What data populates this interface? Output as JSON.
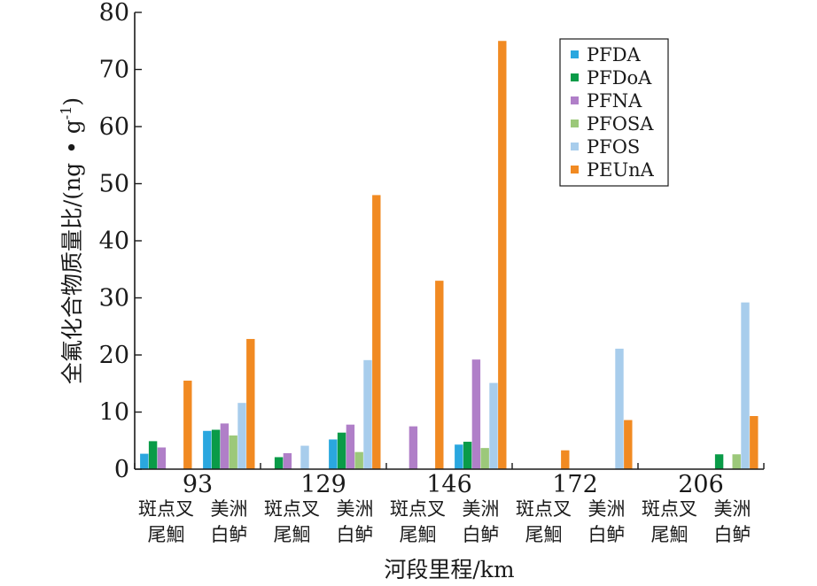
{
  "chart_data": {
    "type": "bar",
    "title": "",
    "xlabel": "河段里程/km",
    "ylabel": "全氟化合物质量比/(ng·g⁻¹)",
    "ylabel_main": "全氟化合物质量比/(ng",
    "ylabel_unit": "g",
    "ylabel_sup": "-1",
    "ylabel_end": ")",
    "ylim": [
      0,
      80
    ],
    "yticks": [
      0,
      10,
      20,
      30,
      40,
      50,
      60,
      70,
      80
    ],
    "legend_position": "top-right",
    "grid": false,
    "distances": [
      "93",
      "129",
      "146",
      "172",
      "206"
    ],
    "species": [
      [
        "斑点叉",
        "尾鮰"
      ],
      [
        "美洲",
        "白鲈"
      ]
    ],
    "categories": [
      "93 斑点叉尾鮰",
      "93 美洲白鲈",
      "129 斑点叉尾鮰",
      "129 美洲白鲈",
      "146 斑点叉尾鮰",
      "146 美洲白鲈",
      "172 斑点叉尾鮰",
      "172 美洲白鲈",
      "206 斑点叉尾鮰",
      "206 美洲白鲈"
    ],
    "series": [
      {
        "name": "PFDA",
        "color": "#2aa7df",
        "values": [
          2.7,
          6.7,
          0,
          5.2,
          0,
          4.3,
          0,
          0,
          0,
          0
        ]
      },
      {
        "name": "PFDoA",
        "color": "#0a9b48",
        "values": [
          4.9,
          6.9,
          2.1,
          6.4,
          0,
          4.8,
          0,
          0,
          0,
          2.6
        ]
      },
      {
        "name": "PFNA",
        "color": "#b07fc8",
        "values": [
          3.8,
          8.0,
          2.8,
          7.8,
          7.5,
          19.2,
          0,
          0,
          0,
          0
        ]
      },
      {
        "name": "PFOSA",
        "color": "#9cc87a",
        "values": [
          0,
          5.9,
          0,
          3.0,
          0,
          3.7,
          0,
          0,
          0,
          2.6
        ]
      },
      {
        "name": "PFOS",
        "color": "#a8cdec",
        "values": [
          0,
          11.6,
          4.1,
          19.1,
          0,
          15.1,
          0,
          21.1,
          0,
          29.2
        ]
      },
      {
        "name": "PEUnA",
        "color": "#f18a22",
        "values": [
          15.5,
          22.8,
          0,
          48.0,
          33.0,
          75.0,
          3.3,
          8.6,
          0,
          9.3
        ]
      }
    ]
  }
}
